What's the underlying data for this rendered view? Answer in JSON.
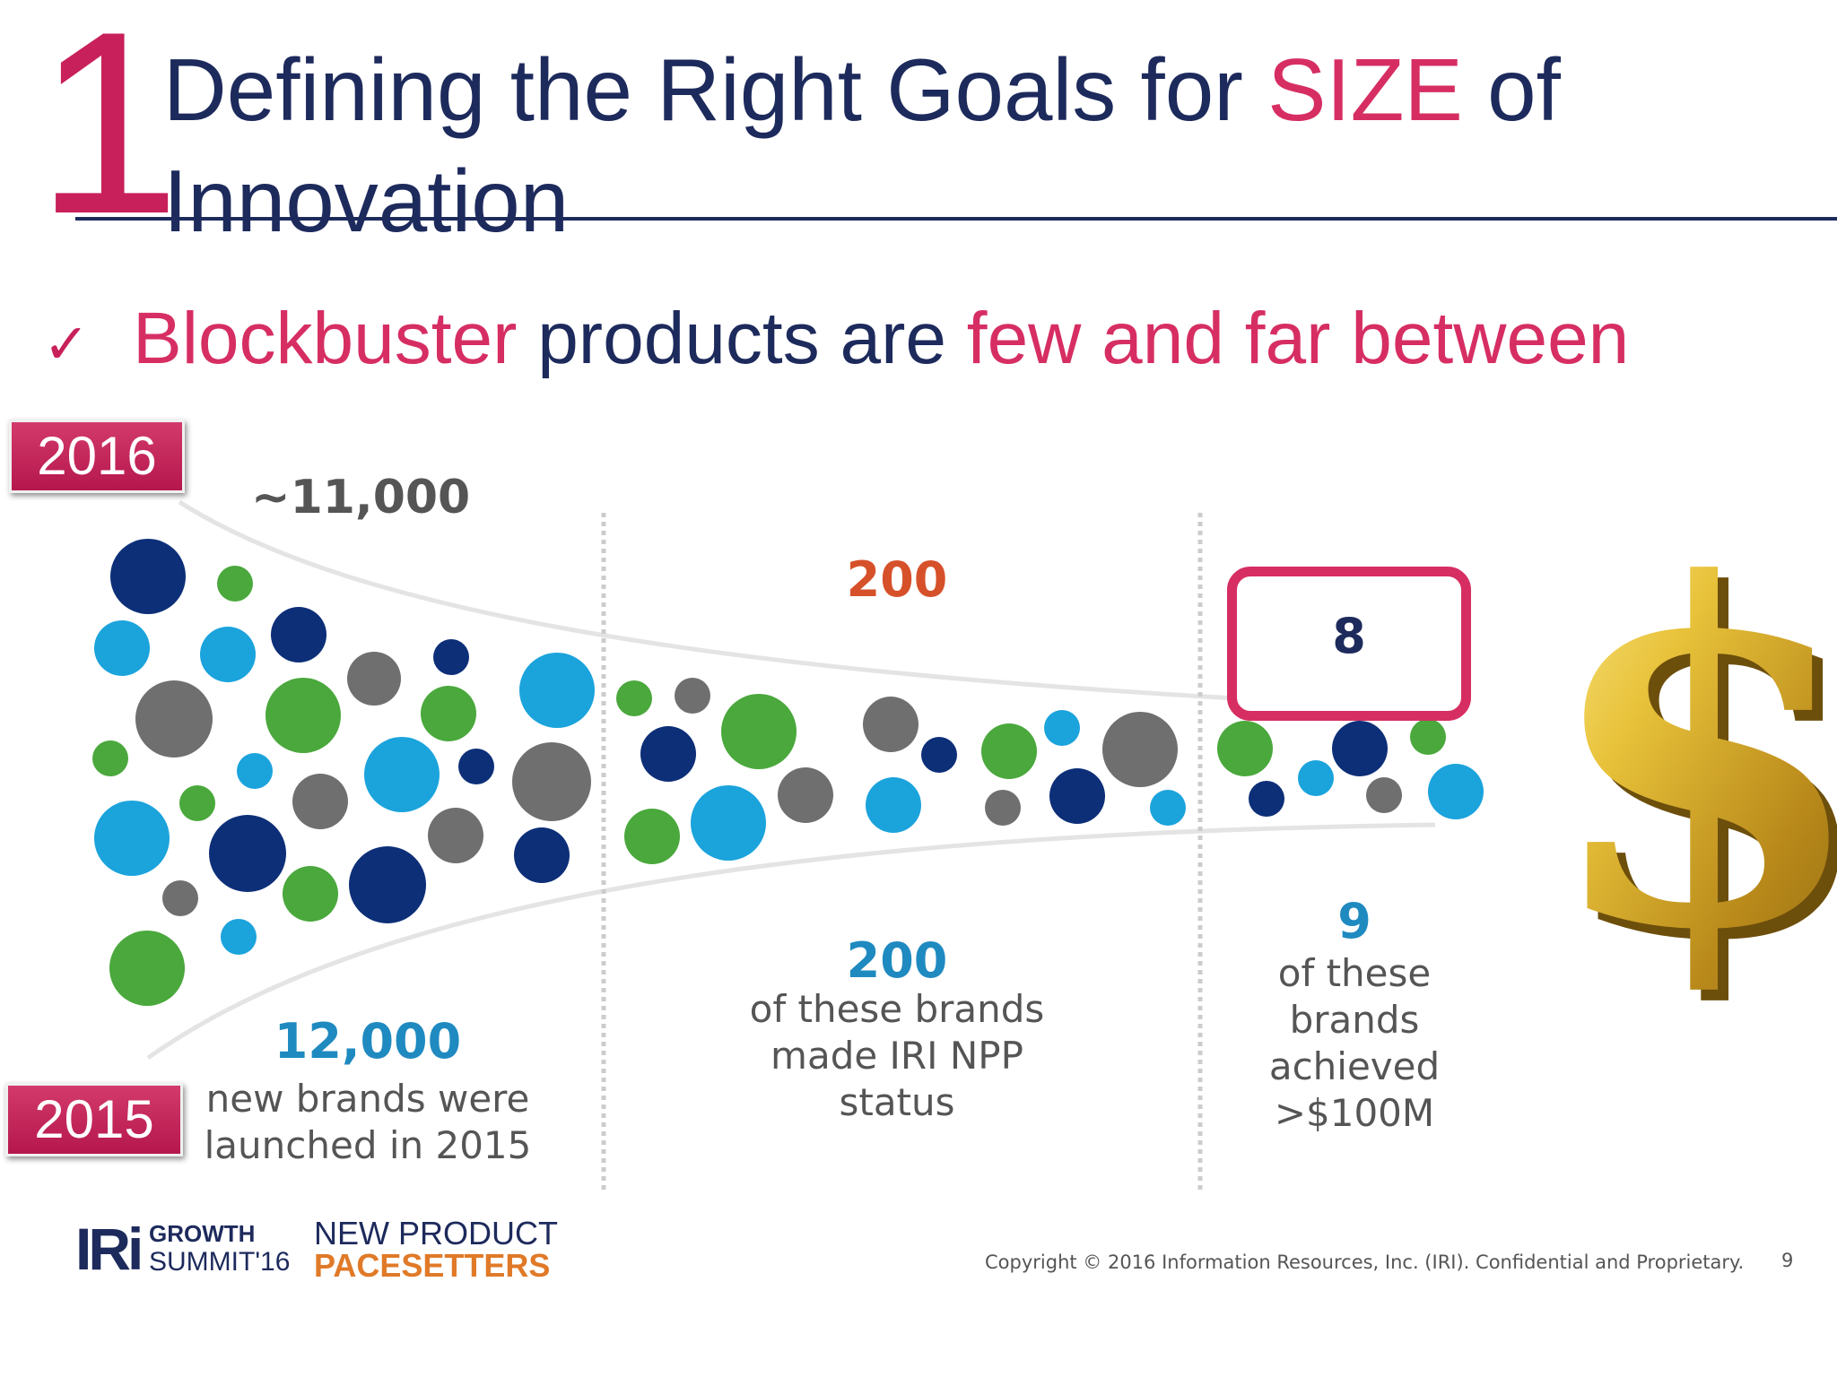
{
  "slide": {
    "number_big": "1",
    "title_part1": "Defining the Right Goals for ",
    "title_highlight": "SIZE",
    "title_part2": " of Innovation",
    "bullet_check": "✓",
    "bullet_pink1": "Blockbuster",
    "bullet_mid": " products are ",
    "bullet_pink2": "few and far between"
  },
  "badges": {
    "top": "2016",
    "bottom": "2015"
  },
  "funnel": {
    "top_2016_count": "~11,000",
    "stage2_2016": "200",
    "stage3_2016": "8",
    "stage1_2015_value": "12,000",
    "stage1_2015_desc": "new brands were launched in 2015",
    "stage2_2015_value": "200",
    "stage2_2015_desc": "of these brands made IRI NPP status",
    "stage3_2015_value": "9",
    "stage3_2015_desc": "of these brands achieved >$100M",
    "colors": {
      "dark_blue": "#0d2f78",
      "light_blue": "#1ba3dc",
      "green": "#4aa83c",
      "gray": "#6f6f6f"
    }
  },
  "footer": {
    "iri": "IRi",
    "growth": "GROWTH",
    "summit": "SUMMIT'16",
    "np_line1": "NEW PRODUCT",
    "np_line2": "PACESETTERS",
    "copyright": "Copyright © 2016 Information Resources, Inc. (IRI). Confidential and Proprietary.",
    "page": "9"
  }
}
